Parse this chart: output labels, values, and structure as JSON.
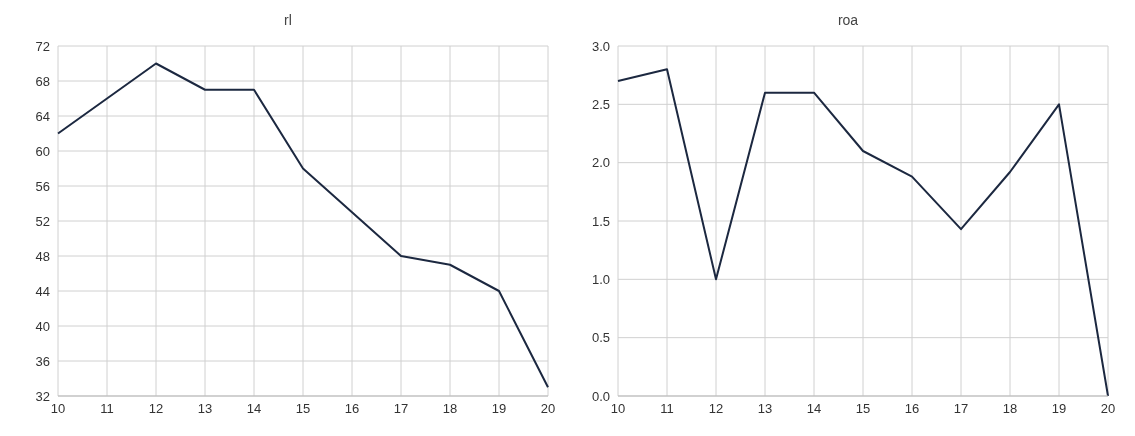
{
  "chart_data": [
    {
      "type": "line",
      "title": "rl",
      "categories": [
        "10",
        "11",
        "12",
        "13",
        "14",
        "15",
        "16",
        "17",
        "18",
        "19",
        "20"
      ],
      "series": [
        {
          "color": "#1c2840",
          "values": [
            62,
            66,
            70,
            67,
            67,
            58,
            53,
            48,
            47,
            44,
            33
          ]
        }
      ],
      "ylim": [
        32,
        72
      ],
      "yticks": [
        32,
        36,
        40,
        44,
        48,
        52,
        56,
        60,
        64,
        68,
        72
      ],
      "grid": true,
      "legend": false,
      "marker": "none"
    },
    {
      "type": "line",
      "title": "roa",
      "categories": [
        "10",
        "11",
        "12",
        "13",
        "14",
        "15",
        "16",
        "17",
        "18",
        "19",
        "20"
      ],
      "series": [
        {
          "color": "#1c2840",
          "values": [
            2.7,
            2.8,
            1.0,
            2.6,
            2.6,
            2.1,
            1.88,
            1.43,
            1.92,
            2.5,
            0
          ]
        }
      ],
      "ylim": [
        0,
        3
      ],
      "yticks": [
        {
          "value": 0,
          "label": "0.0"
        },
        {
          "value": 0.5,
          "label": "0.5"
        },
        {
          "value": 1,
          "label": "1.0"
        },
        {
          "value": 1.5,
          "label": "1.5"
        },
        {
          "value": 2,
          "label": "2.0"
        },
        {
          "value": 2.5,
          "label": "2.5"
        },
        {
          "value": 3,
          "label": "3.0"
        }
      ],
      "grid": true,
      "legend": false,
      "marker": "none"
    }
  ]
}
